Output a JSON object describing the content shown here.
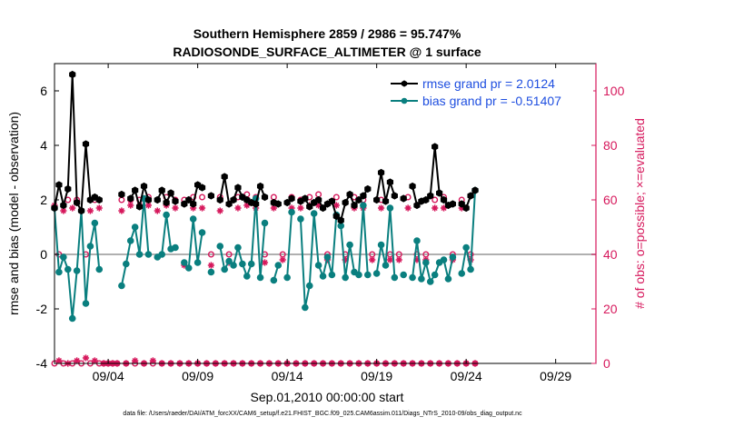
{
  "chart_data": {
    "type": "line",
    "title": [
      "Southern Hemisphere 2859 / 2986 = 95.747%",
      "RADIOSONDE_SURFACE_ALTIMETER @ 1 surface"
    ],
    "xlabel": "Sep.01,2010 00:00:00 start",
    "ylabel_left": "rmse and bias (model - observation)",
    "ylabel_right": "# of obs: o=possible; ×=evaluated",
    "footnote": "data file: /Users/raeder/DAI/ATM_forcXX/CAM6_setup/f.e21.FHIST_BGC.f09_025.CAM6assim.011/Diags_NTrS_2010-09/obs_diag_output.nc",
    "xlim": [
      0.5,
      30.75
    ],
    "ylim_left": [
      -4,
      7
    ],
    "ylim_right": [
      0,
      110
    ],
    "x_ticks": [
      3.5,
      8.5,
      13.5,
      18.5,
      23.5,
      28.5
    ],
    "x_tick_labels": [
      "09/04",
      "09/09",
      "09/14",
      "09/19",
      "09/24",
      "09/29"
    ],
    "y_ticks_left": [
      -4,
      -2,
      0,
      2,
      4,
      6
    ],
    "y_ticks_right": [
      0,
      20,
      40,
      60,
      80,
      100
    ],
    "x_start": 0.5,
    "x_step": 0.25,
    "legend": [
      "rmse grand pr = 2.0124",
      "bias grand pr = -0.51407"
    ],
    "colors": {
      "rmse": "#000000",
      "bias": "#0a7f7f",
      "obs": "#d6185c",
      "legend_text": "#1f4fe0",
      "zero_line": "#b0b0b0"
    },
    "series": [
      {
        "name": "rmse",
        "values": [
          1.7,
          2.55,
          1.8,
          2.4,
          6.6,
          1.9,
          1.6,
          4.05,
          2.0,
          2.1,
          2.0,
          null,
          null,
          null,
          null,
          2.2,
          null,
          2.05,
          2.35,
          1.75,
          2.5,
          2.0,
          null,
          2.0,
          2.35,
          1.9,
          2.25,
          1.95,
          null,
          1.85,
          2.0,
          1.85,
          2.55,
          2.45,
          null,
          2.15,
          null,
          2.0,
          2.85,
          1.85,
          2.0,
          2.45,
          2.1,
          2.0,
          1.9,
          1.85,
          2.5,
          2.1,
          null,
          1.9,
          1.85,
          null,
          1.9,
          2.05,
          null,
          1.95,
          2.05,
          1.75,
          1.9,
          2.0,
          1.7,
          1.85,
          1.95,
          1.4,
          1.25,
          1.9,
          2.2,
          1.8,
          2.0,
          2.15,
          2.4,
          null,
          2.0,
          3.0,
          1.95,
          2.65,
          2.15,
          null,
          2.05,
          null,
          2.5,
          1.8,
          1.95,
          2.0,
          2.15,
          3.95,
          2.25,
          2.0,
          1.8,
          1.85,
          null,
          1.85,
          1.7,
          2.15,
          2.35
        ]
      },
      {
        "name": "bias",
        "values": [
          1.7,
          -0.65,
          -0.1,
          -0.55,
          -2.35,
          -0.6,
          1.6,
          -1.8,
          0.3,
          1.15,
          -0.55,
          null,
          null,
          null,
          null,
          -1.15,
          -0.35,
          0.5,
          1.0,
          0.0,
          2.05,
          0.0,
          null,
          -0.1,
          0.0,
          1.45,
          0.2,
          0.25,
          null,
          -0.3,
          -0.5,
          1.3,
          -0.3,
          0.8,
          null,
          -0.65,
          null,
          0.3,
          -0.55,
          -0.25,
          -0.4,
          0.25,
          -0.35,
          -0.8,
          -0.35,
          2.05,
          -0.85,
          1.15,
          null,
          -0.95,
          -0.4,
          null,
          -0.85,
          1.55,
          null,
          1.3,
          -1.95,
          -1.15,
          1.5,
          -0.4,
          -0.8,
          -0.1,
          -0.75,
          1.45,
          1.05,
          -0.85,
          0.35,
          -0.65,
          -0.75,
          1.8,
          -0.75,
          null,
          -0.7,
          0.35,
          -0.4,
          1.7,
          -0.85,
          null,
          -0.75,
          null,
          -0.85,
          0.5,
          -0.9,
          -0.3,
          -1.0,
          -0.75,
          -0.3,
          -0.2,
          -0.9,
          -0.1,
          null,
          -0.7,
          0.25,
          -0.55,
          2.35
        ]
      },
      {
        "name": "obs_possible",
        "values": [
          0,
          40,
          0,
          60,
          0,
          60,
          0,
          40,
          0,
          60,
          0,
          0,
          0,
          0,
          0,
          60,
          0,
          60,
          0,
          60,
          0,
          61,
          0,
          60,
          0,
          61,
          0,
          60,
          0,
          60,
          0,
          61,
          0,
          61,
          0,
          40,
          0,
          61,
          0,
          40,
          0,
          61,
          0,
          62,
          0,
          61,
          0,
          40,
          0,
          61,
          0,
          40,
          0,
          61,
          0,
          60,
          0,
          61,
          0,
          62,
          0,
          40,
          0,
          61,
          0,
          40,
          0,
          61,
          0,
          60,
          0,
          40,
          0,
          60,
          0,
          40,
          0,
          40,
          0,
          61,
          0,
          40,
          0,
          40,
          0,
          60,
          0,
          61,
          0,
          40,
          0,
          60,
          0,
          40,
          0
        ]
      },
      {
        "name": "obs_evaluated",
        "values": [
          58,
          1,
          56,
          0,
          57,
          1,
          56,
          2,
          56,
          1,
          57,
          0,
          0,
          0,
          0,
          56,
          0,
          58,
          1,
          58,
          0,
          58,
          1,
          56,
          0,
          58,
          0,
          57,
          0,
          36,
          0,
          57,
          0,
          57,
          0,
          36,
          0,
          56,
          0,
          37,
          0,
          57,
          0,
          58,
          0,
          57,
          0,
          37,
          0,
          57,
          0,
          38,
          0,
          57,
          0,
          57,
          0,
          58,
          0,
          58,
          0,
          38,
          0,
          58,
          0,
          38,
          0,
          57,
          0,
          57,
          0,
          38,
          0,
          57,
          0,
          38,
          0,
          38,
          0,
          57,
          0,
          38,
          0,
          38,
          0,
          57,
          0,
          57,
          0,
          38,
          0,
          57,
          0,
          38,
          0
        ]
      }
    ]
  }
}
